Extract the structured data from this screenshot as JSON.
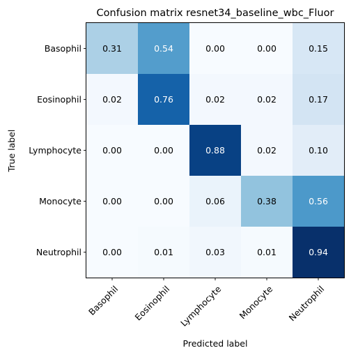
{
  "chart_data": {
    "type": "heatmap",
    "title": "Confusion matrix resnet34_baseline_wbc_Fluor",
    "xlabel": "Predicted label",
    "ylabel": "True label",
    "x_categories": [
      "Basophil",
      "Eosinophil",
      "Lymphocyte",
      "Monocyte",
      "Neutrophil"
    ],
    "y_categories": [
      "Basophil",
      "Eosinophil",
      "Lymphocyte",
      "Monocyte",
      "Neutrophil"
    ],
    "values": [
      [
        0.31,
        0.54,
        0.0,
        0.0,
        0.15
      ],
      [
        0.02,
        0.76,
        0.02,
        0.02,
        0.17
      ],
      [
        0.0,
        0.0,
        0.88,
        0.02,
        0.1
      ],
      [
        0.0,
        0.0,
        0.06,
        0.38,
        0.56
      ],
      [
        0.0,
        0.01,
        0.03,
        0.01,
        0.94
      ]
    ],
    "value_labels": [
      [
        "0.31",
        "0.54",
        "0.00",
        "0.00",
        "0.15"
      ],
      [
        "0.02",
        "0.76",
        "0.02",
        "0.02",
        "0.17"
      ],
      [
        "0.00",
        "0.00",
        "0.88",
        "0.02",
        "0.10"
      ],
      [
        "0.00",
        "0.00",
        "0.06",
        "0.38",
        "0.56"
      ],
      [
        "0.00",
        "0.01",
        "0.03",
        "0.01",
        "0.94"
      ]
    ],
    "colormap": "Blues",
    "colormap_stops": [
      "#f7fbff",
      "#deebf7",
      "#c6dbef",
      "#9ecae1",
      "#6baed6",
      "#4292c6",
      "#2171b5",
      "#08519c",
      "#08306b"
    ],
    "text_color_dark": "#000000",
    "text_color_light": "#ffffff",
    "grid": false,
    "legend": "none"
  }
}
